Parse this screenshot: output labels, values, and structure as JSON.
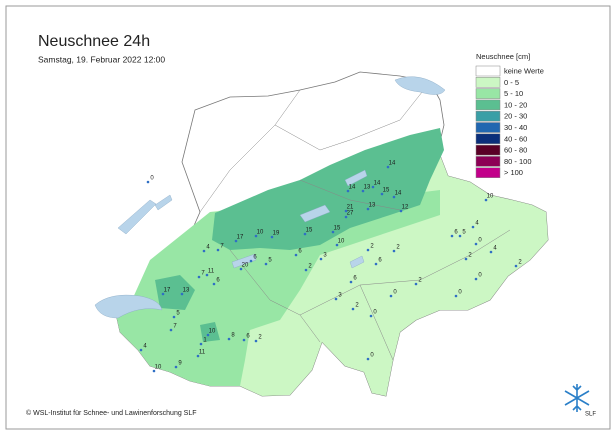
{
  "title": "Neuschnee 24h",
  "subtitle": "Samstag, 19. Februar 2022 12:00",
  "legend": {
    "title": "Neuschnee [cm]",
    "items": [
      {
        "label": "keine Werte",
        "color": "#ffffff"
      },
      {
        "label": "0 - 5",
        "color": "#ccf7c4"
      },
      {
        "label": "5 - 10",
        "color": "#98e6a5"
      },
      {
        "label": "10 - 20",
        "color": "#5bbf91"
      },
      {
        "label": "20 - 30",
        "color": "#3a9fa6"
      },
      {
        "label": "30 - 40",
        "color": "#2167b0"
      },
      {
        "label": "40 - 60",
        "color": "#0b2f7a"
      },
      {
        "label": "60 - 80",
        "color": "#5a0026"
      },
      {
        "label": "80 - 100",
        "color": "#8c0055"
      },
      {
        "label": "> 100",
        "color": "#c2008a"
      }
    ]
  },
  "stations": [
    14,
    14,
    13,
    14,
    15,
    14,
    21,
    13,
    27,
    17,
    10,
    19,
    15,
    15,
    10,
    12,
    4,
    7,
    6,
    5,
    6,
    2,
    3,
    2,
    2,
    6,
    5,
    4,
    10,
    0,
    17,
    13,
    7,
    11,
    6,
    20,
    2,
    6,
    0,
    2,
    0,
    0,
    2,
    10,
    6,
    8,
    11,
    2,
    4,
    10,
    9,
    1,
    0,
    2,
    0,
    4,
    6,
    3,
    0,
    5,
    7
  ],
  "copyright": "© WSL-Institut für Schnee- und Lawinenforschung SLF",
  "logo": "SLF"
}
